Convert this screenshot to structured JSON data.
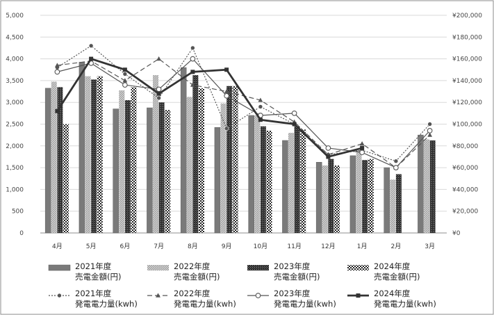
{
  "chart_data": {
    "type": "bar",
    "categories": [
      "4月",
      "5月",
      "6月",
      "7月",
      "8月",
      "9月",
      "10月",
      "11月",
      "12月",
      "1月",
      "2月",
      "3月"
    ],
    "ylim": [
      0,
      5000
    ],
    "y2lim": [
      0,
      200000
    ],
    "y_ticks": [
      "0",
      "500",
      "1,000",
      "1,500",
      "2,000",
      "2,500",
      "3,000",
      "3,500",
      "4,000",
      "4,500",
      "5,000"
    ],
    "y2_ticks": [
      "¥0",
      "¥20,000",
      "¥40,000",
      "¥60,000",
      "¥80,000",
      "¥100,000",
      "¥120,000",
      "¥140,000",
      "¥160,000",
      "¥180,000",
      "¥200,000"
    ],
    "grid": true,
    "legend_position": "bottom",
    "series": [
      {
        "name_line1": "2021年度",
        "name_line2": "売電金額(円)",
        "kind": "bar",
        "axis": "right",
        "color": "#7a7a7a",
        "pattern": "solid",
        "values": [
          133000,
          157000,
          114000,
          115000,
          152000,
          97000,
          108000,
          85000,
          65000,
          71000,
          60000,
          90000
        ]
      },
      {
        "name_line1": "2022年度",
        "name_line2": "売電金額(円)",
        "kind": "bar",
        "axis": "right",
        "color": "#bdbdbd",
        "pattern": "hatch",
        "values": [
          139000,
          144000,
          131000,
          145000,
          125000,
          119000,
          108000,
          92000,
          62000,
          76000,
          49000,
          86000
        ]
      },
      {
        "name_line1": "2023年度",
        "name_line2": "売電金額(円)",
        "kind": "bar",
        "axis": "right",
        "color": "#3c3c3c",
        "pattern": "crosshatch",
        "values": [
          134000,
          141000,
          122000,
          120000,
          145000,
          135000,
          98000,
          98000,
          68000,
          67000,
          54000,
          85000
        ]
      },
      {
        "name_line1": "2024年度",
        "name_line2": "売電金額(円)",
        "kind": "bar",
        "axis": "right",
        "color": "#222222",
        "pattern": "dots",
        "values": [
          100000,
          144000,
          134000,
          113000,
          133000,
          135000,
          94000,
          95000,
          62000,
          68000,
          null,
          null
        ]
      },
      {
        "name_line1": "2021年度",
        "name_line2": "発電電力量(kwh)",
        "kind": "line",
        "axis": "left",
        "color": "#555555",
        "dash": "2,2",
        "marker": "filled-circle",
        "values": [
          3800,
          4300,
          3650,
          3100,
          4250,
          2400,
          2900,
          2500,
          1800,
          1900,
          1650,
          2500
        ]
      },
      {
        "name_line1": "2022年度",
        "name_line2": "発電電力量(kwh)",
        "kind": "line",
        "axis": "left",
        "color": "#555555",
        "dash": "7,4",
        "marker": "triangle",
        "values": [
          3850,
          3950,
          3500,
          4000,
          3400,
          3250,
          3050,
          2550,
          1800,
          2050,
          1500,
          2250
        ]
      },
      {
        "name_line1": "2023年度",
        "name_line2": "発電電力量(kwh)",
        "kind": "line",
        "axis": "left",
        "color": "#555555",
        "dash": "",
        "marker": "open-circle",
        "values": [
          3700,
          3900,
          3400,
          3300,
          4000,
          3150,
          2700,
          2750,
          1950,
          1850,
          1500,
          2350
        ]
      },
      {
        "name_line1": "2024年度",
        "name_line2": "発電電力量(kwh)",
        "kind": "line",
        "axis": "left",
        "color": "#333333",
        "dash": "",
        "marker": "filled-square",
        "values": [
          2800,
          4000,
          3750,
          3200,
          3700,
          3750,
          2600,
          2500,
          1750,
          1950,
          null,
          null
        ]
      }
    ]
  }
}
